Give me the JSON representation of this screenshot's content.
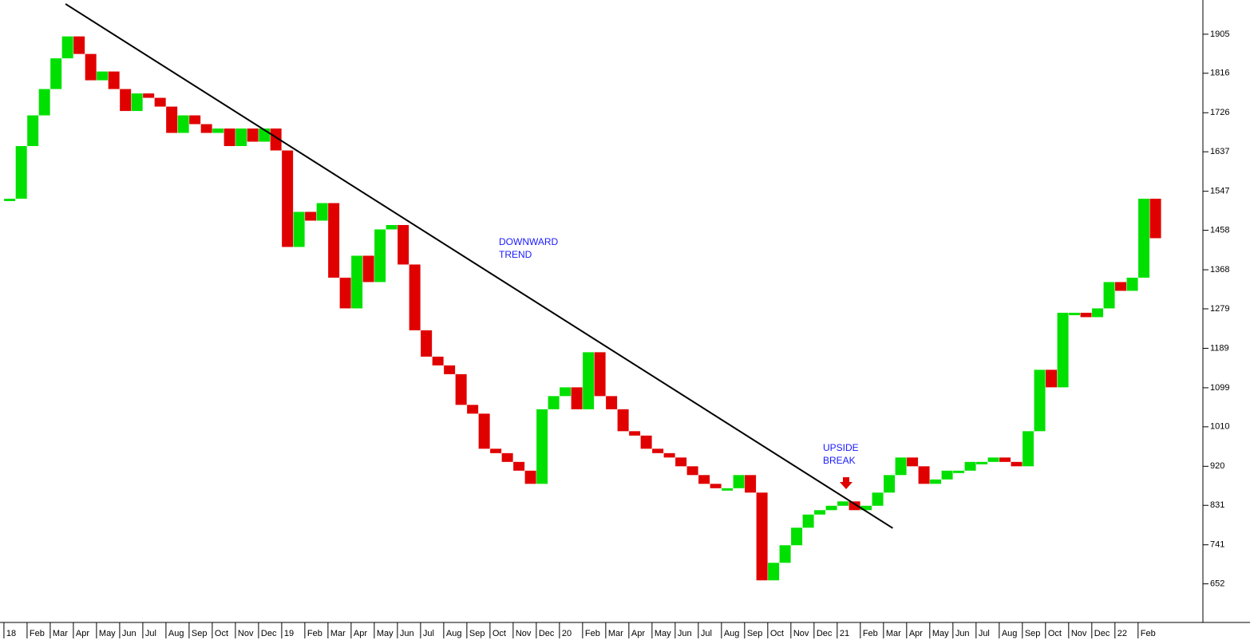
{
  "chart_data": {
    "type": "bar",
    "xlim": [
      -0.17,
      51.8
    ],
    "ylim": [
      564,
      1983
    ],
    "yticks": [
      652,
      741,
      831,
      920,
      1010,
      1099,
      1189,
      1279,
      1368,
      1458,
      1547,
      1637,
      1726,
      1816,
      1905
    ],
    "xticks": [
      {
        "value": 0,
        "label": "18"
      },
      {
        "value": 1,
        "label": "Feb"
      },
      {
        "value": 2,
        "label": "Mar"
      },
      {
        "value": 3,
        "label": "Apr"
      },
      {
        "value": 4,
        "label": "May"
      },
      {
        "value": 5,
        "label": "Jun"
      },
      {
        "value": 6,
        "label": "Jul"
      },
      {
        "value": 7,
        "label": "Aug"
      },
      {
        "value": 8,
        "label": "Sep"
      },
      {
        "value": 9,
        "label": "Oct"
      },
      {
        "value": 10,
        "label": "Nov"
      },
      {
        "value": 11,
        "label": "Dec"
      },
      {
        "value": 12,
        "label": "19"
      },
      {
        "value": 13,
        "label": "Feb"
      },
      {
        "value": 14,
        "label": "Mar"
      },
      {
        "value": 15,
        "label": "Apr"
      },
      {
        "value": 16,
        "label": "May"
      },
      {
        "value": 17,
        "label": "Jun"
      },
      {
        "value": 18,
        "label": "Jul"
      },
      {
        "value": 19,
        "label": "Aug"
      },
      {
        "value": 20,
        "label": "Sep"
      },
      {
        "value": 21,
        "label": "Oct"
      },
      {
        "value": 22,
        "label": "Nov"
      },
      {
        "value": 23,
        "label": "Dec"
      },
      {
        "value": 24,
        "label": "20"
      },
      {
        "value": 25,
        "label": "Feb"
      },
      {
        "value": 26,
        "label": "Mar"
      },
      {
        "value": 27,
        "label": "Apr"
      },
      {
        "value": 28,
        "label": "May"
      },
      {
        "value": 29,
        "label": "Jun"
      },
      {
        "value": 30,
        "label": "Jul"
      },
      {
        "value": 31,
        "label": "Aug"
      },
      {
        "value": 32,
        "label": "Sep"
      },
      {
        "value": 33,
        "label": "Oct"
      },
      {
        "value": 34,
        "label": "Nov"
      },
      {
        "value": 35,
        "label": "Dec"
      },
      {
        "value": 36,
        "label": "21"
      },
      {
        "value": 37,
        "label": "Feb"
      },
      {
        "value": 38,
        "label": "Mar"
      },
      {
        "value": 39,
        "label": "Apr"
      },
      {
        "value": 40,
        "label": "May"
      },
      {
        "value": 41,
        "label": "Jun"
      },
      {
        "value": 42,
        "label": "Jul"
      },
      {
        "value": 43,
        "label": "Aug"
      },
      {
        "value": 44,
        "label": "Sep"
      },
      {
        "value": 45,
        "label": "Oct"
      },
      {
        "value": 46,
        "label": "Nov"
      },
      {
        "value": 47,
        "label": "Dec"
      },
      {
        "value": 48,
        "label": "22"
      },
      {
        "value": 49,
        "label": "Feb"
      }
    ],
    "x": [
      0.25,
      0.75,
      1.25,
      1.75,
      2.25,
      2.75,
      3.25,
      3.75,
      4.25,
      4.75,
      5.25,
      5.75,
      6.25,
      6.75,
      7.25,
      7.75,
      8.25,
      8.75,
      9.25,
      9.75,
      10.25,
      10.75,
      11.25,
      11.75,
      12.25,
      12.75,
      13.25,
      13.75,
      14.25,
      14.75,
      15.25,
      15.75,
      16.25,
      16.75,
      17.25,
      17.75,
      18.25,
      18.75,
      19.25,
      19.75,
      20.25,
      20.75,
      21.25,
      21.75,
      22.25,
      22.75,
      23.25,
      23.75,
      24.25,
      24.75,
      25.25,
      25.75,
      26.25,
      26.75,
      27.25,
      27.75,
      28.25,
      28.75,
      29.25,
      29.75,
      30.25,
      30.75,
      31.25,
      31.75,
      32.25,
      32.75,
      33.25,
      33.75,
      34.25,
      34.75,
      35.25,
      35.75,
      36.25,
      36.75,
      37.25,
      37.75,
      38.25,
      38.75,
      39.25,
      39.75,
      40.25,
      40.75,
      41.25,
      41.75,
      42.25,
      42.75,
      43.25,
      43.75,
      44.25,
      44.75,
      45.25,
      45.75,
      46.25,
      46.75,
      47.25,
      47.75,
      48.25,
      48.75,
      49.25,
      49.75
    ],
    "values": [
      1530,
      1650,
      1720,
      1780,
      1850,
      1900,
      1860,
      1800,
      1820,
      1780,
      1730,
      1770,
      1760,
      1740,
      1680,
      1720,
      1700,
      1680,
      1690,
      1650,
      1690,
      1660,
      1690,
      1640,
      1420,
      1500,
      1480,
      1520,
      1350,
      1280,
      1400,
      1340,
      1460,
      1470,
      1380,
      1230,
      1170,
      1150,
      1130,
      1060,
      1040,
      960,
      950,
      930,
      910,
      880,
      1050,
      1080,
      1100,
      1050,
      1180,
      1080,
      1050,
      1000,
      990,
      960,
      950,
      940,
      920,
      900,
      880,
      870,
      870,
      900,
      860,
      660,
      700,
      740,
      780,
      810,
      820,
      830,
      840,
      820,
      830,
      860,
      900,
      940,
      920,
      880,
      890,
      910,
      910,
      930,
      930,
      940,
      930,
      920,
      1000,
      1140,
      1100,
      1270,
      1270,
      1260,
      1280,
      1340,
      1320,
      1350,
      1530,
      1440
    ],
    "up_color": "#00e000",
    "down_color": "#e00000",
    "trend_line": {
      "x": [
        2.66,
        38.4
      ],
      "values": [
        1974,
        779
      ]
    },
    "annotations": [
      [
        "DOWNWARD",
        "TREND"
      ],
      [
        "UPSIDE",
        "BREAK"
      ]
    ]
  }
}
